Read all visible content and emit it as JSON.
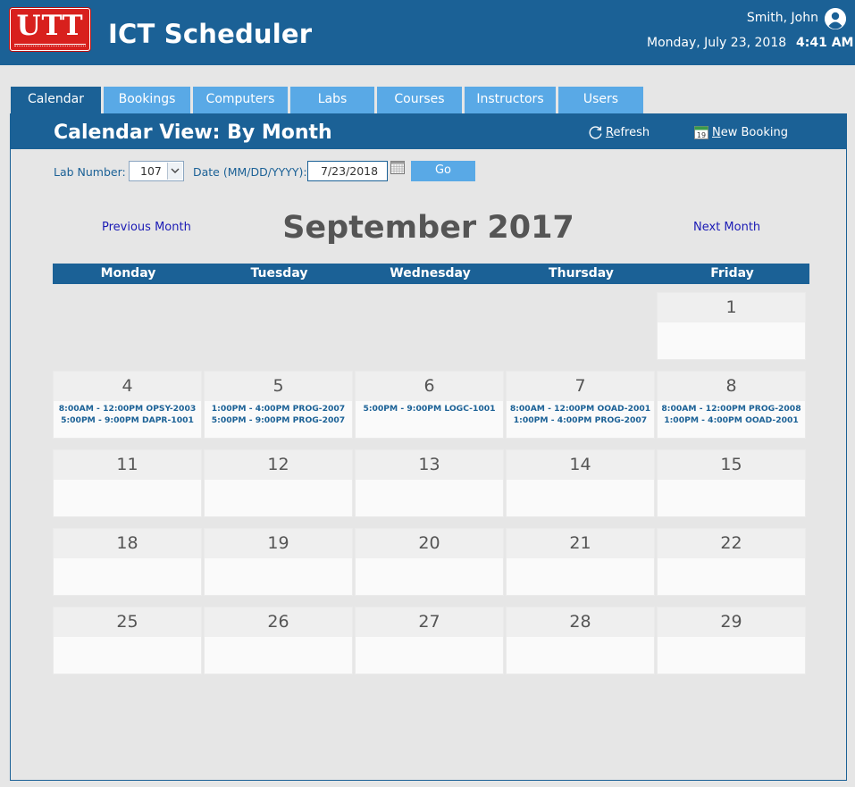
{
  "header": {
    "logo_text": "UTT",
    "app_title": "ICT Scheduler",
    "user_name": "Smith, John",
    "date": "Monday, July 23, 2018",
    "time": "4:41 AM",
    "brand_color": "#1b6196",
    "accent_color": "#59a9e6",
    "logo_color": "#d8201d"
  },
  "tabs": [
    {
      "label": "Calendar",
      "active": true
    },
    {
      "label": "Bookings",
      "active": false
    },
    {
      "label": "Computers",
      "active": false
    },
    {
      "label": "Labs",
      "active": false
    },
    {
      "label": "Courses",
      "active": false
    },
    {
      "label": "Instructors",
      "active": false
    },
    {
      "label": "Users",
      "active": false
    }
  ],
  "panel": {
    "title": "Calendar View: By Month",
    "refresh_label": "Refresh",
    "new_booking_label": "New Booking",
    "new_booking_icon_day": "19"
  },
  "filters": {
    "lab_label": "Lab Number:",
    "lab_value": "107",
    "date_label": "Date (MM/DD/YYYY):",
    "date_value": "7/23/2018",
    "go_label": "Go"
  },
  "month_nav": {
    "previous_label": "Previous Month",
    "next_label": "Next Month",
    "month_title": "September 2017"
  },
  "weekdays": [
    "Monday",
    "Tuesday",
    "Wednesday",
    "Thursday",
    "Friday"
  ],
  "weeks": [
    [
      null,
      null,
      null,
      null,
      {
        "day": "1",
        "events": []
      }
    ],
    [
      {
        "day": "4",
        "events": [
          "8:00AM - 12:00PM OPSY-2003",
          "5:00PM - 9:00PM DAPR-1001"
        ]
      },
      {
        "day": "5",
        "events": [
          "1:00PM - 4:00PM PROG-2007",
          "5:00PM - 9:00PM PROG-2007"
        ]
      },
      {
        "day": "6",
        "events": [
          "5:00PM - 9:00PM LOGC-1001"
        ]
      },
      {
        "day": "7",
        "events": [
          "8:00AM - 12:00PM OOAD-2001",
          "1:00PM - 4:00PM PROG-2007"
        ]
      },
      {
        "day": "8",
        "events": [
          "8:00AM - 12:00PM PROG-2008",
          "1:00PM - 4:00PM OOAD-2001"
        ]
      }
    ],
    [
      {
        "day": "11",
        "events": []
      },
      {
        "day": "12",
        "events": []
      },
      {
        "day": "13",
        "events": []
      },
      {
        "day": "14",
        "events": []
      },
      {
        "day": "15",
        "events": []
      }
    ],
    [
      {
        "day": "18",
        "events": []
      },
      {
        "day": "19",
        "events": []
      },
      {
        "day": "20",
        "events": []
      },
      {
        "day": "21",
        "events": []
      },
      {
        "day": "22",
        "events": []
      }
    ],
    [
      {
        "day": "25",
        "events": []
      },
      {
        "day": "26",
        "events": []
      },
      {
        "day": "27",
        "events": []
      },
      {
        "day": "28",
        "events": []
      },
      {
        "day": "29",
        "events": []
      }
    ]
  ]
}
